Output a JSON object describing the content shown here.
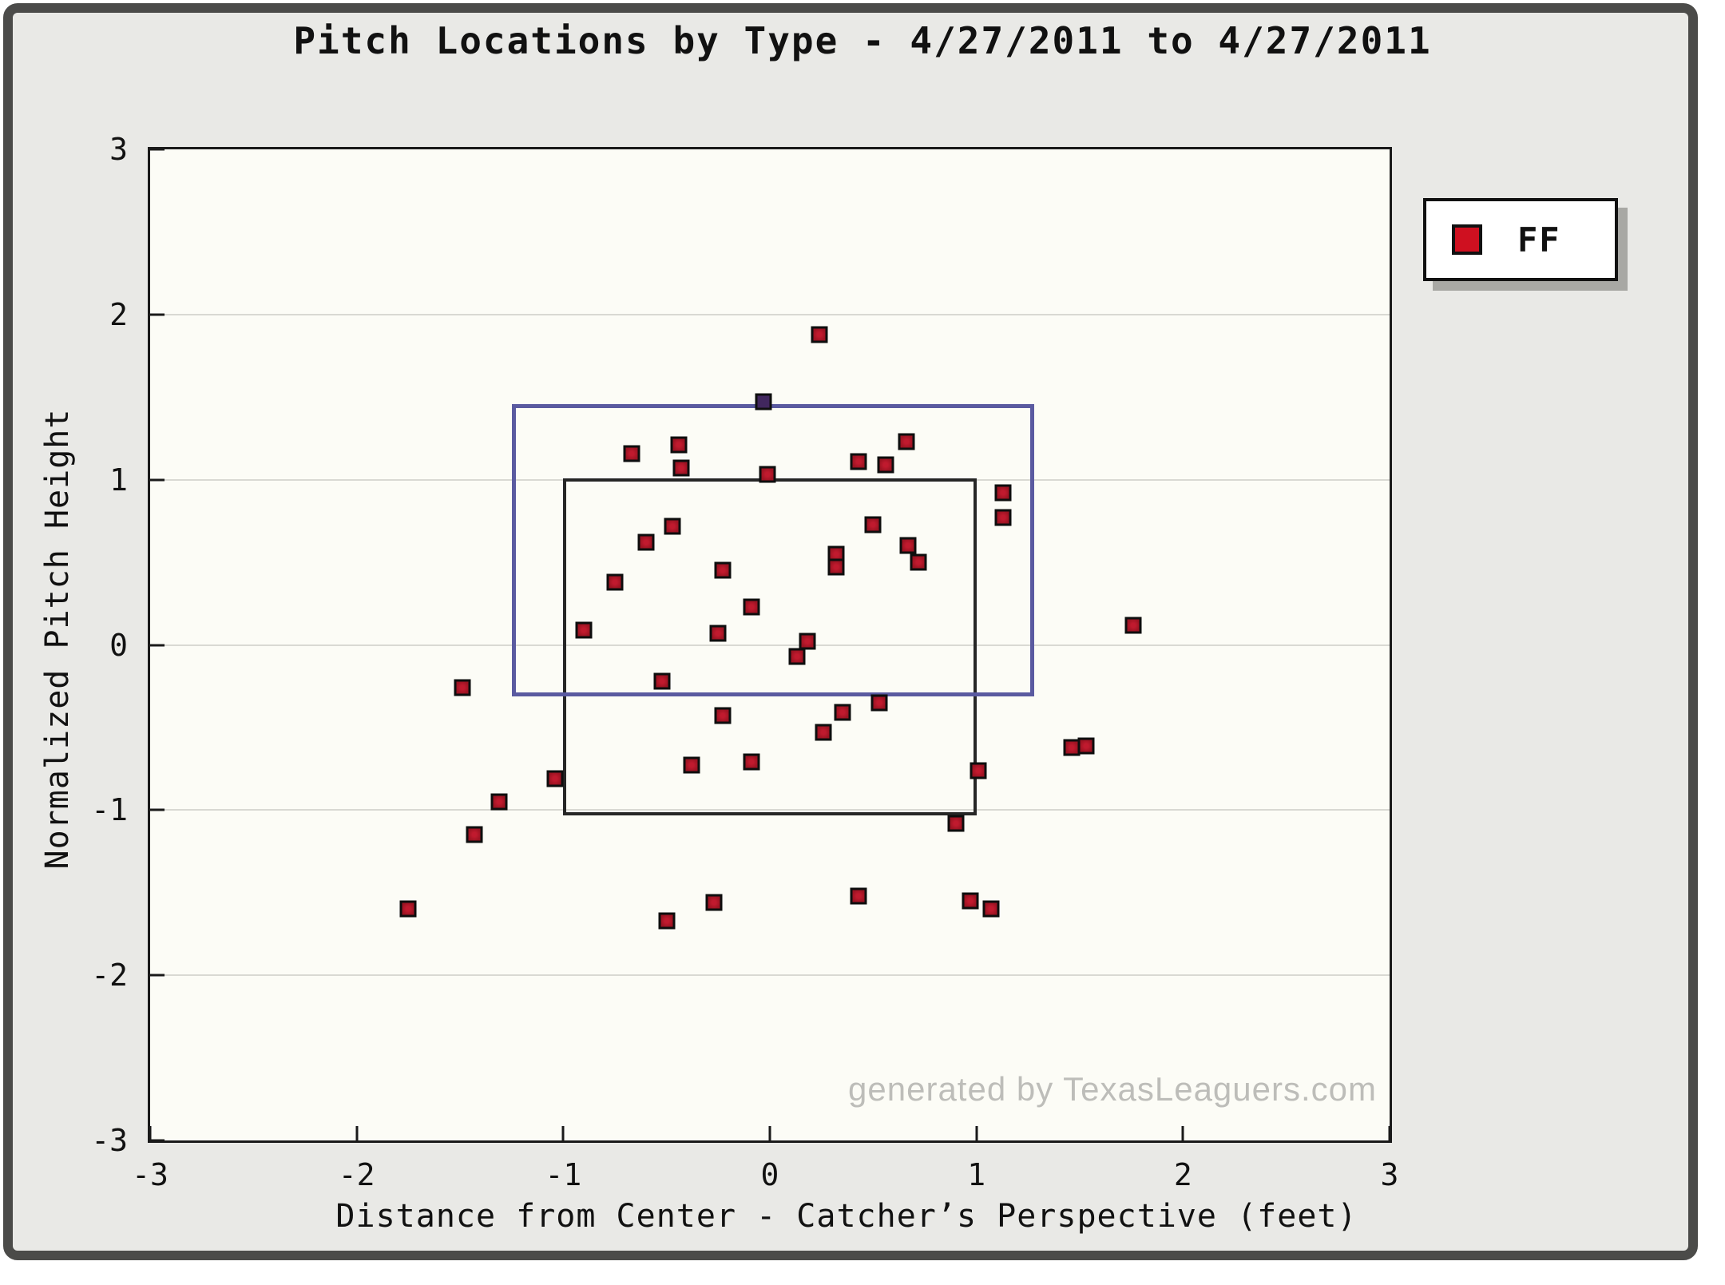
{
  "header": {
    "title": "Pitch Locations by Type - 4/27/2011 to 4/27/2011"
  },
  "watermark_text": "generated by TexasLeaguers.com",
  "legend": {
    "position": "outside-top-right",
    "items": [
      {
        "label": "FF",
        "marker": "square",
        "color": "#cf1020"
      }
    ]
  },
  "chart_data": {
    "type": "scatter",
    "title": "Pitch Locations by Type - 4/27/2011 to 4/27/2011",
    "xlabel": "Distance from Center - Catcher’s Perspective (feet)",
    "xlabel_plain": "Distance from Center - Catcher's Perspective (feet)",
    "ylabel": "Normalized Pitch Height",
    "xlim": [
      -3,
      3
    ],
    "ylim": [
      -3,
      3
    ],
    "xticks": [
      -3,
      -2,
      -1,
      0,
      1,
      2,
      3
    ],
    "yticks": [
      3,
      2,
      1,
      0,
      -1,
      -2,
      -3
    ],
    "grid": "horizontal gridlines at y = 2,1,0,-1,-2",
    "legend_position": "outside top-right",
    "series": [
      {
        "name": "FF",
        "marker": "square",
        "color": "#9c1322",
        "border_color": "#0e0e0e",
        "points": [
          [
            0.24,
            1.88
          ],
          [
            -0.67,
            1.16
          ],
          [
            -0.44,
            1.21
          ],
          [
            -0.43,
            1.07
          ],
          [
            -0.01,
            1.03
          ],
          [
            0.43,
            1.11
          ],
          [
            0.66,
            1.23
          ],
          [
            0.56,
            1.09
          ],
          [
            1.13,
            0.92
          ],
          [
            1.13,
            0.77
          ],
          [
            0.5,
            0.73
          ],
          [
            0.67,
            0.6
          ],
          [
            0.72,
            0.5
          ],
          [
            -0.6,
            0.62
          ],
          [
            -0.47,
            0.72
          ],
          [
            -0.75,
            0.38
          ],
          [
            -0.23,
            0.45
          ],
          [
            0.32,
            0.55
          ],
          [
            0.32,
            0.47
          ],
          [
            -0.09,
            0.23
          ],
          [
            -0.9,
            0.09
          ],
          [
            -0.25,
            0.07
          ],
          [
            0.18,
            0.02
          ],
          [
            0.13,
            -0.07
          ],
          [
            -0.52,
            -0.22
          ],
          [
            -1.49,
            -0.26
          ],
          [
            -0.23,
            -0.43
          ],
          [
            0.35,
            -0.41
          ],
          [
            0.26,
            -0.53
          ],
          [
            0.53,
            -0.35
          ],
          [
            -0.38,
            -0.73
          ],
          [
            -0.09,
            -0.71
          ],
          [
            1.01,
            -0.76
          ],
          [
            -1.04,
            -0.81
          ],
          [
            1.76,
            0.12
          ],
          [
            1.46,
            -0.62
          ],
          [
            1.53,
            -0.61
          ],
          [
            0.9,
            -1.08
          ],
          [
            -1.31,
            -0.95
          ],
          [
            -1.43,
            -1.15
          ],
          [
            -1.75,
            -1.6
          ],
          [
            -0.5,
            -1.67
          ],
          [
            -0.27,
            -1.56
          ],
          [
            0.43,
            -1.52
          ],
          [
            0.97,
            -1.55
          ],
          [
            1.07,
            -1.6
          ]
        ]
      }
    ],
    "special_points": [
      {
        "series": "FF",
        "xy": [
          -0.03,
          1.47
        ],
        "color": "#41275e"
      }
    ],
    "zones": [
      {
        "name": "strike-zone-normalized",
        "x": [
          -1.0,
          1.0
        ],
        "y": [
          -1.03,
          1.01
        ],
        "outline": "#262626",
        "outline_width": 4
      },
      {
        "name": "strike-zone-expanded",
        "x": [
          -1.25,
          1.28
        ],
        "y": [
          -0.31,
          1.46
        ],
        "outline": "#5a5aa0",
        "outline_width": 5
      }
    ]
  },
  "colors": {
    "page_bg": "#ffffff",
    "panel_bg": "#e9e9e6",
    "panel_border": "#4b4b49",
    "plot_bg": "#fcfcf6",
    "plot_border": "#1a1a1a",
    "grid": "#d9d9d3",
    "text": "#111111",
    "watermark": "#bdbdb9",
    "legend_bg": "#ffffff",
    "legend_shadow": "#a8a8a4",
    "point_fill": "#9c1322",
    "point_border": "#0e0e0e",
    "special_point_fill": "#41275e"
  }
}
